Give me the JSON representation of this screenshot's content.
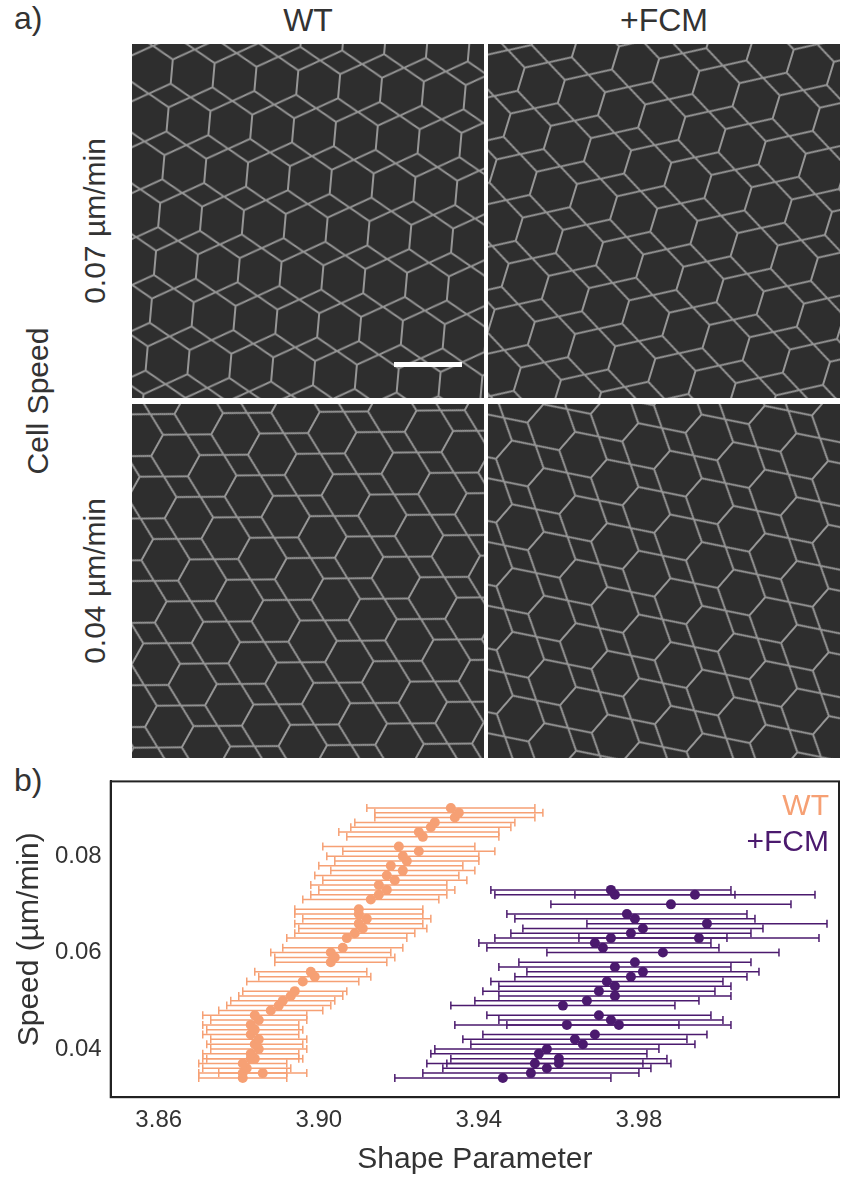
{
  "panel_a": {
    "label": "a)",
    "columns": [
      "WT",
      "+FCM"
    ],
    "row_title": "Cell Speed",
    "rows": [
      "0.07 µm/min",
      "0.04 µm/min"
    ]
  },
  "panel_b": {
    "label": "b)"
  },
  "chart_data": {
    "type": "scatter",
    "x_label": "Shape Parameter",
    "y_label": "Speed (µm/min)",
    "xlim": [
      3.848,
      4.03
    ],
    "xticks": [
      3.86,
      {
        "value": 3.9,
        "label": "3.90"
      },
      3.94,
      3.98
    ],
    "ylim": [
      0.03,
      0.0955
    ],
    "yticks": [
      0.04,
      0.06,
      0.08
    ],
    "grid": false,
    "legend": "upper right",
    "marker": "circle",
    "series": [
      {
        "name": "WT",
        "color": "#f6a074",
        "x": [
          3.881,
          3.881,
          3.886,
          3.882,
          3.881,
          3.883,
          3.884,
          3.883,
          3.885,
          3.884,
          3.885,
          3.883,
          3.884,
          3.883,
          3.885,
          3.884,
          3.888,
          3.89,
          3.891,
          3.893,
          3.894,
          3.896,
          3.899,
          3.898,
          3.903,
          3.904,
          3.903,
          3.906,
          3.907,
          3.909,
          3.911,
          3.91,
          3.912,
          3.91,
          3.91,
          3.913,
          3.915,
          3.917,
          3.915,
          3.919,
          3.917,
          3.921,
          3.918,
          3.922,
          3.921,
          3.925,
          3.92,
          3.926,
          3.925,
          3.928,
          3.929,
          3.934,
          3.935,
          3.933
        ],
        "values": [
          0.034,
          0.035,
          0.035,
          0.036,
          0.037,
          0.038,
          0.038,
          0.039,
          0.04,
          0.041,
          0.042,
          0.043,
          0.044,
          0.045,
          0.046,
          0.047,
          0.048,
          0.049,
          0.05,
          0.051,
          0.052,
          0.054,
          0.055,
          0.056,
          0.058,
          0.059,
          0.06,
          0.061,
          0.063,
          0.064,
          0.065,
          0.066,
          0.067,
          0.068,
          0.069,
          0.071,
          0.072,
          0.073,
          0.074,
          0.075,
          0.076,
          0.077,
          0.078,
          0.079,
          0.08,
          0.081,
          0.082,
          0.084,
          0.085,
          0.086,
          0.087,
          0.088,
          0.089,
          0.09
        ],
        "x_error": [
          0.011,
          0.011,
          0.011,
          0.011,
          0.011,
          0.012,
          0.012,
          0.012,
          0.012,
          0.012,
          0.012,
          0.012,
          0.012,
          0.012,
          0.012,
          0.013,
          0.013,
          0.013,
          0.013,
          0.013,
          0.013,
          0.014,
          0.014,
          0.014,
          0.014,
          0.015,
          0.015,
          0.015,
          0.015,
          0.015,
          0.016,
          0.016,
          0.016,
          0.016,
          0.016,
          0.017,
          0.017,
          0.017,
          0.017,
          0.018,
          0.018,
          0.018,
          0.018,
          0.018,
          0.019,
          0.019,
          0.019,
          0.019,
          0.02,
          0.02,
          0.02,
          0.02,
          0.021,
          0.021
        ]
      },
      {
        "name": "+FCM",
        "color": "#4b1a6e",
        "x": [
          3.946,
          3.953,
          3.957,
          3.954,
          3.96,
          3.96,
          3.955,
          3.957,
          3.966,
          3.964,
          3.969,
          3.962,
          3.975,
          3.973,
          3.97,
          3.961,
          3.967,
          3.974,
          3.97,
          3.974,
          3.972,
          3.978,
          3.981,
          3.974,
          3.979,
          3.986,
          3.971,
          3.969,
          3.973,
          3.978,
          3.995,
          3.981,
          3.997,
          3.979,
          3.977,
          3.988,
          3.974,
          3.994,
          3.973
        ],
        "values": [
          0.034,
          0.035,
          0.036,
          0.037,
          0.037,
          0.038,
          0.039,
          0.04,
          0.041,
          0.042,
          0.043,
          0.045,
          0.045,
          0.046,
          0.047,
          0.049,
          0.05,
          0.051,
          0.052,
          0.053,
          0.054,
          0.055,
          0.056,
          0.057,
          0.058,
          0.06,
          0.061,
          0.062,
          0.063,
          0.064,
          0.063,
          0.065,
          0.066,
          0.067,
          0.068,
          0.07,
          0.072,
          0.072,
          0.073
        ],
        "x_error": [
          0.027,
          0.027,
          0.026,
          0.027,
          0.028,
          0.027,
          0.027,
          0.028,
          0.028,
          0.028,
          0.028,
          0.028,
          0.028,
          0.028,
          0.028,
          0.028,
          0.028,
          0.029,
          0.029,
          0.029,
          0.029,
          0.029,
          0.029,
          0.029,
          0.029,
          0.029,
          0.029,
          0.029,
          0.029,
          0.03,
          0.03,
          0.03,
          0.03,
          0.03,
          0.03,
          0.03,
          0.03,
          0.03,
          0.03
        ]
      }
    ]
  }
}
